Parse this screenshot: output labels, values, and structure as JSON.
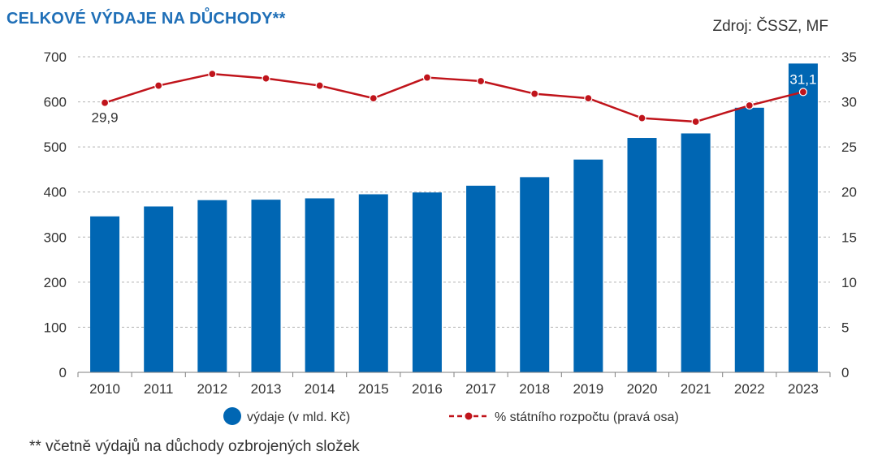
{
  "header": {
    "title": "CELKOVÉ VÝDAJE NA DŮCHODY**",
    "source": "Zdroj: ČSSZ, MF"
  },
  "footnote": "** včetně výdajů na důchody ozbrojených složek",
  "colors": {
    "bar": "#0066b3",
    "line": "#c0141b",
    "grid": "#b3b3b3",
    "axis_text": "#333333",
    "title": "#1f6fb7"
  },
  "chart_data": {
    "type": "bar",
    "categories": [
      "2010",
      "2011",
      "2012",
      "2013",
      "2014",
      "2015",
      "2016",
      "2017",
      "2018",
      "2019",
      "2020",
      "2021",
      "2022",
      "2023"
    ],
    "series": [
      {
        "name": "výdaje (v mld. Kč)",
        "type": "bar",
        "axis": "left",
        "values": [
          346,
          368,
          382,
          383,
          386,
          395,
          399,
          414,
          433,
          472,
          520,
          530,
          587,
          685
        ]
      },
      {
        "name": "% státního rozpočtu (pravá osa)",
        "type": "line",
        "axis": "right",
        "values": [
          29.9,
          31.8,
          33.1,
          32.6,
          31.8,
          30.4,
          32.7,
          32.3,
          30.9,
          30.4,
          28.2,
          27.8,
          29.6,
          31.1
        ]
      }
    ],
    "data_labels": [
      {
        "series": 1,
        "index": 0,
        "text": "29,9"
      },
      {
        "series": 1,
        "index": 13,
        "text": "31,1"
      }
    ],
    "y_left": {
      "min": 0,
      "max": 700,
      "ticks": [
        "0",
        "100",
        "200",
        "300",
        "400",
        "500",
        "600",
        "700"
      ]
    },
    "y_right": {
      "min": 0,
      "max": 35,
      "ticks": [
        "0",
        "5",
        "10",
        "15",
        "20",
        "25",
        "30",
        "35"
      ]
    },
    "grid": "horizontal-dashed",
    "legend_position": "bottom"
  }
}
